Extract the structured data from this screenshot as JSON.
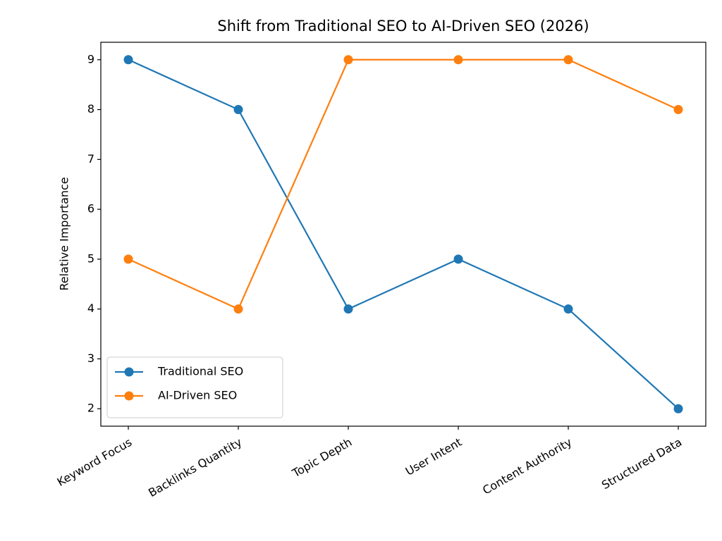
{
  "chart_data": {
    "type": "line",
    "title": "Shift from Traditional SEO to AI-Driven SEO (2026)",
    "ylabel": "Relative Importance",
    "categories": [
      "Keyword Focus",
      "Backlinks Quantity",
      "Topic Depth",
      "User Intent",
      "Content Authority",
      "Structured Data"
    ],
    "series": [
      {
        "name": "Traditional SEO",
        "color": "#1f77b4",
        "values": [
          9,
          8,
          4,
          5,
          4,
          2
        ]
      },
      {
        "name": "AI-Driven SEO",
        "color": "#ff7f0e",
        "values": [
          5,
          4,
          9,
          9,
          9,
          8
        ]
      }
    ],
    "ylim": [
      1.65,
      9.35
    ],
    "yticks": [
      2,
      3,
      4,
      5,
      6,
      7,
      8,
      9
    ],
    "grid": false,
    "legend": "lower left"
  }
}
